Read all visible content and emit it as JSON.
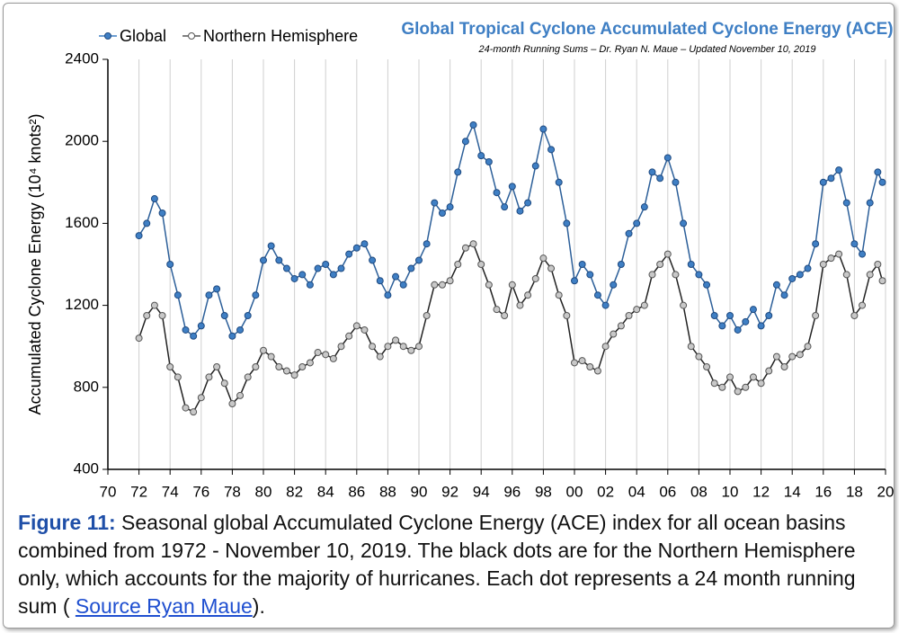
{
  "chart_data": {
    "type": "line",
    "title": "Global Tropical Cyclone Accumulated Cyclone Energy (ACE)",
    "subtitle": "24-month Running Sums – Dr. Ryan N. Maue – Updated November 10, 2019",
    "y_label": "Accumulated Cyclone Energy (10⁴ knots²)",
    "x": [
      1972,
      1972.5,
      1973,
      1973.5,
      1974,
      1974.5,
      1975,
      1975.5,
      1976,
      1976.5,
      1977,
      1977.5,
      1978,
      1978.5,
      1979,
      1979.5,
      1980,
      1980.5,
      1981,
      1981.5,
      1982,
      1982.5,
      1983,
      1983.5,
      1984,
      1984.5,
      1985,
      1985.5,
      1986,
      1986.5,
      1987,
      1987.5,
      1988,
      1988.5,
      1989,
      1989.5,
      1990,
      1990.5,
      1991,
      1991.5,
      1992,
      1992.5,
      1993,
      1993.5,
      1994,
      1994.5,
      1995,
      1995.5,
      1996,
      1996.5,
      1997,
      1997.5,
      1998,
      1998.5,
      1999,
      1999.5,
      2000,
      2000.5,
      2001,
      2001.5,
      2002,
      2002.5,
      2003,
      2003.5,
      2004,
      2004.5,
      2005,
      2005.5,
      2006,
      2006.5,
      2007,
      2007.5,
      2008,
      2008.5,
      2009,
      2009.5,
      2010,
      2010.5,
      2011,
      2011.5,
      2012,
      2012.5,
      2013,
      2013.5,
      2014,
      2014.5,
      2015,
      2015.5,
      2016,
      2016.5,
      2017,
      2017.5,
      2018,
      2018.5,
      2019,
      2019.5,
      2019.8
    ],
    "series": [
      {
        "name": "Global",
        "color": "#3f7fc4",
        "values": [
          1540,
          1600,
          1720,
          1650,
          1400,
          1250,
          1080,
          1050,
          1100,
          1250,
          1280,
          1150,
          1050,
          1080,
          1150,
          1250,
          1420,
          1490,
          1420,
          1380,
          1330,
          1350,
          1300,
          1380,
          1400,
          1350,
          1380,
          1450,
          1480,
          1500,
          1420,
          1320,
          1250,
          1340,
          1300,
          1380,
          1420,
          1500,
          1700,
          1650,
          1680,
          1850,
          2000,
          2080,
          1930,
          1900,
          1750,
          1680,
          1780,
          1660,
          1700,
          1880,
          2060,
          1960,
          1800,
          1600,
          1320,
          1400,
          1350,
          1250,
          1200,
          1300,
          1400,
          1550,
          1600,
          1680,
          1850,
          1820,
          1920,
          1800,
          1600,
          1400,
          1350,
          1300,
          1150,
          1100,
          1150,
          1080,
          1120,
          1180,
          1100,
          1150,
          1300,
          1250,
          1330,
          1350,
          1380,
          1500,
          1800,
          1820,
          1860,
          1700,
          1500,
          1450,
          1700,
          1850,
          1800
        ]
      },
      {
        "name": "Northern Hemisphere",
        "color": "#555555",
        "values": [
          1040,
          1150,
          1200,
          1150,
          900,
          850,
          700,
          680,
          750,
          850,
          900,
          820,
          720,
          760,
          850,
          900,
          980,
          950,
          900,
          880,
          860,
          900,
          920,
          970,
          960,
          940,
          1000,
          1050,
          1100,
          1080,
          1000,
          950,
          1000,
          1030,
          1000,
          980,
          1000,
          1150,
          1300,
          1300,
          1320,
          1400,
          1480,
          1500,
          1400,
          1300,
          1180,
          1150,
          1300,
          1200,
          1250,
          1330,
          1430,
          1380,
          1250,
          1150,
          920,
          930,
          900,
          880,
          1000,
          1060,
          1100,
          1150,
          1180,
          1200,
          1350,
          1400,
          1450,
          1350,
          1200,
          1000,
          950,
          900,
          820,
          800,
          850,
          780,
          800,
          850,
          820,
          880,
          950,
          900,
          950,
          960,
          1000,
          1150,
          1400,
          1430,
          1450,
          1350,
          1150,
          1200,
          1350,
          1400,
          1320
        ]
      }
    ],
    "xlim": [
      1970,
      2020
    ],
    "xticks": [
      {
        "value": 1970,
        "label": "70"
      },
      {
        "value": 1972,
        "label": "72"
      },
      {
        "value": 1974,
        "label": "74"
      },
      {
        "value": 1976,
        "label": "76"
      },
      {
        "value": 1978,
        "label": "78"
      },
      {
        "value": 1980,
        "label": "80"
      },
      {
        "value": 1982,
        "label": "82"
      },
      {
        "value": 1984,
        "label": "84"
      },
      {
        "value": 1986,
        "label": "86"
      },
      {
        "value": 1988,
        "label": "88"
      },
      {
        "value": 1990,
        "label": "90"
      },
      {
        "value": 1992,
        "label": "92"
      },
      {
        "value": 1994,
        "label": "94"
      },
      {
        "value": 1996,
        "label": "96"
      },
      {
        "value": 1998,
        "label": "98"
      },
      {
        "value": 2000,
        "label": "00"
      },
      {
        "value": 2002,
        "label": "02"
      },
      {
        "value": 2004,
        "label": "04"
      },
      {
        "value": 2006,
        "label": "06"
      },
      {
        "value": 2008,
        "label": "08"
      },
      {
        "value": 2010,
        "label": "10"
      },
      {
        "value": 2012,
        "label": "12"
      },
      {
        "value": 2014,
        "label": "14"
      },
      {
        "value": 2016,
        "label": "16"
      },
      {
        "value": 2018,
        "label": "18"
      },
      {
        "value": 2020,
        "label": "20"
      }
    ],
    "ylim": [
      400,
      2400
    ],
    "yticks": [
      400,
      800,
      1200,
      1600,
      2000,
      2400
    ],
    "grid": "x",
    "legend": "top-left"
  },
  "caption": {
    "label": "Figure 11:",
    "body": "Seasonal global Accumulated Cyclone Energy (ACE) index for all ocean basins combined from 1972 - November 10, 2019. The black dots are for the Northern Hemisphere only, which accounts for the majority of hurricanes. Each dot represents a 24 month running sum (",
    "link": "Source Ryan Maue",
    "end": ")."
  }
}
